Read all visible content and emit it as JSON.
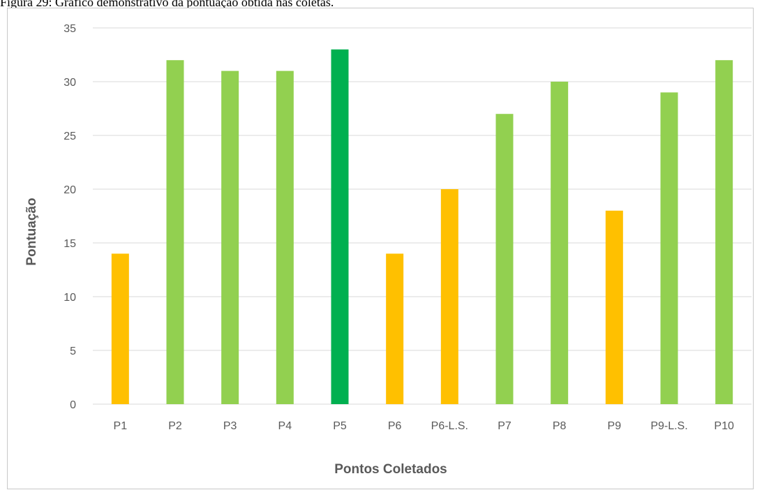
{
  "caption": "Figura 29: Gráfico demonstrativo da pontuação obtida nas coletas.",
  "chart_data": {
    "type": "bar",
    "title": "",
    "xlabel": "Pontos Coletados",
    "ylabel": "Pontuação",
    "categories": [
      "P1",
      "P2",
      "P3",
      "P4",
      "P5",
      "P6",
      "P6-L.S.",
      "P7",
      "P8",
      "P9",
      "P9-L.S.",
      "P10"
    ],
    "values": [
      14,
      32,
      31,
      31,
      33,
      14,
      20,
      27,
      30,
      18,
      29,
      32
    ],
    "bar_colors": [
      "#FFC000",
      "#92D050",
      "#92D050",
      "#92D050",
      "#00B050",
      "#FFC000",
      "#FFC000",
      "#92D050",
      "#92D050",
      "#FFC000",
      "#92D050",
      "#92D050"
    ],
    "ylim": [
      0,
      35
    ],
    "yticks": [
      0,
      5,
      10,
      15,
      20,
      25,
      30,
      35
    ],
    "grid": true,
    "legend": "none"
  }
}
